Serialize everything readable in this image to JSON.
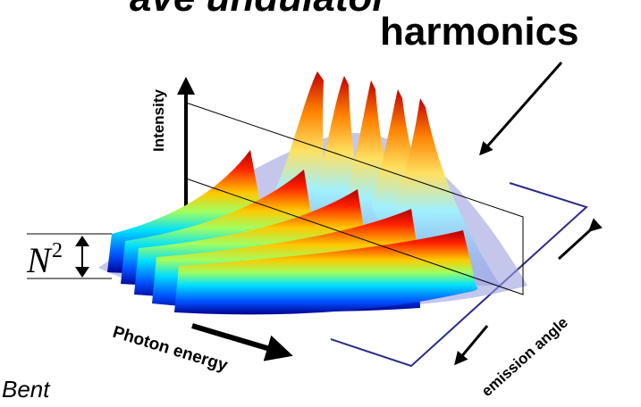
{
  "header": {
    "title": "ave undulator"
  },
  "labels": {
    "harmonics": "harmonics",
    "intensity": "Intensity",
    "n_symbol": "N",
    "n_exponent": "2",
    "photon_energy": "Photon energy",
    "emission_angle": "emission angle",
    "footer": "Bent"
  }
}
